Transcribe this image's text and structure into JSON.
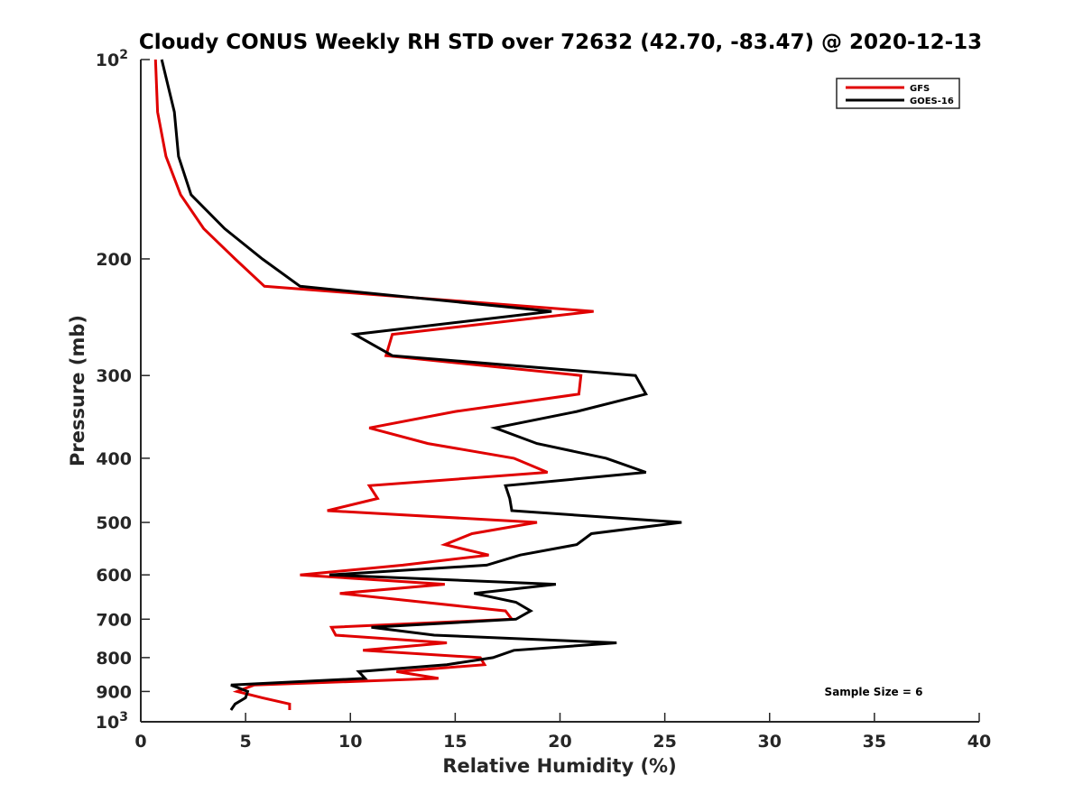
{
  "chart_data": {
    "type": "line",
    "title": "Cloudy CONUS Weekly RH STD over 72632 (42.70, -83.47) @ 2020-12-13",
    "xlabel": "Relative Humidity (%)",
    "ylabel": "Pressure (mb)",
    "xlim": [
      0,
      40
    ],
    "ylim": [
      100,
      1000
    ],
    "y_scale": "log",
    "y_reversed": true,
    "x_ticks": [
      0,
      5,
      10,
      15,
      20,
      25,
      30,
      35,
      40
    ],
    "x_tick_labels": [
      "0",
      "5",
      "10",
      "15",
      "20",
      "25",
      "30",
      "35",
      "40"
    ],
    "y_ticks": [
      100,
      200,
      300,
      400,
      500,
      600,
      700,
      800,
      900,
      1000
    ],
    "y_tick_labels": [
      "10",
      "200",
      "300",
      "400",
      "500",
      "600",
      "700",
      "800",
      "900",
      "10"
    ],
    "y_tick_exponents": {
      "100": "2",
      "1000": "3"
    },
    "grid": false,
    "legend_position": "top-right",
    "annotation": "Sample Size = 6",
    "pressure": [
      100,
      120,
      140,
      160,
      180,
      200,
      220,
      240,
      260,
      280,
      300,
      320,
      340,
      360,
      380,
      400,
      420,
      440,
      460,
      480,
      500,
      520,
      540,
      560,
      580,
      600,
      620,
      640,
      660,
      680,
      700,
      720,
      740,
      760,
      780,
      800,
      820,
      840,
      860,
      880,
      900,
      920,
      940,
      960
    ],
    "series": [
      {
        "name": "GFS",
        "color": "#e00000",
        "values": [
          0.7,
          0.8,
          1.2,
          1.9,
          3.0,
          4.5,
          5.9,
          21.6,
          12.0,
          11.7,
          21.0,
          20.9,
          15.0,
          10.9,
          13.7,
          17.8,
          19.4,
          10.9,
          11.3,
          8.9,
          18.9,
          15.8,
          14.5,
          16.6,
          12.5,
          7.6,
          14.5,
          9.5,
          13.5,
          17.4,
          17.7,
          9.1,
          9.3,
          14.6,
          10.6,
          16.2,
          16.4,
          12.2,
          14.2,
          5.4,
          4.6,
          5.8,
          7.1,
          7.1
        ]
      },
      {
        "name": "GOES-16",
        "color": "#000000",
        "values": [
          1.0,
          1.6,
          1.8,
          2.4,
          4.0,
          5.8,
          7.6,
          19.6,
          10.2,
          12.0,
          23.6,
          24.1,
          20.8,
          16.9,
          18.9,
          22.2,
          24.1,
          17.4,
          17.6,
          17.7,
          25.8,
          21.5,
          20.8,
          18.1,
          16.5,
          9.0,
          19.8,
          15.9,
          17.9,
          18.6,
          17.9,
          11.0,
          14.0,
          22.7,
          17.8,
          16.8,
          14.6,
          10.4,
          10.7,
          4.3,
          5.1,
          5.0,
          4.5,
          4.3
        ]
      }
    ]
  }
}
